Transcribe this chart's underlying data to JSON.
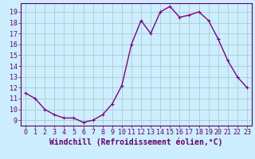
{
  "x": [
    0,
    1,
    2,
    3,
    4,
    5,
    6,
    7,
    8,
    9,
    10,
    11,
    12,
    13,
    14,
    15,
    16,
    17,
    18,
    19,
    20,
    21,
    22,
    23
  ],
  "y": [
    11.5,
    11.0,
    10.0,
    9.5,
    9.2,
    9.2,
    8.8,
    9.0,
    9.5,
    10.5,
    12.2,
    16.0,
    18.2,
    17.0,
    19.0,
    19.5,
    18.5,
    18.7,
    19.0,
    18.2,
    16.5,
    14.5,
    13.0,
    12.0
  ],
  "line_color": "#800080",
  "marker": "+",
  "marker_size": 3,
  "background_color": "#cceeff",
  "grid_color": "#aacccc",
  "xlabel": "Windchill (Refroidissement éolien,°C)",
  "xlabel_fontsize": 7,
  "ytick_labels": [
    "9",
    "10",
    "11",
    "12",
    "13",
    "14",
    "15",
    "16",
    "17",
    "18",
    "19"
  ],
  "ytick_values": [
    9,
    10,
    11,
    12,
    13,
    14,
    15,
    16,
    17,
    18,
    19
  ],
  "ylim": [
    8.5,
    19.8
  ],
  "xlim": [
    -0.5,
    23.5
  ],
  "xtick_labels": [
    "0",
    "1",
    "2",
    "3",
    "4",
    "5",
    "6",
    "7",
    "8",
    "9",
    "10",
    "11",
    "12",
    "13",
    "14",
    "15",
    "16",
    "17",
    "18",
    "19",
    "20",
    "21",
    "22",
    "23"
  ],
  "line_width": 1.0,
  "tick_fontsize": 6,
  "title": ""
}
